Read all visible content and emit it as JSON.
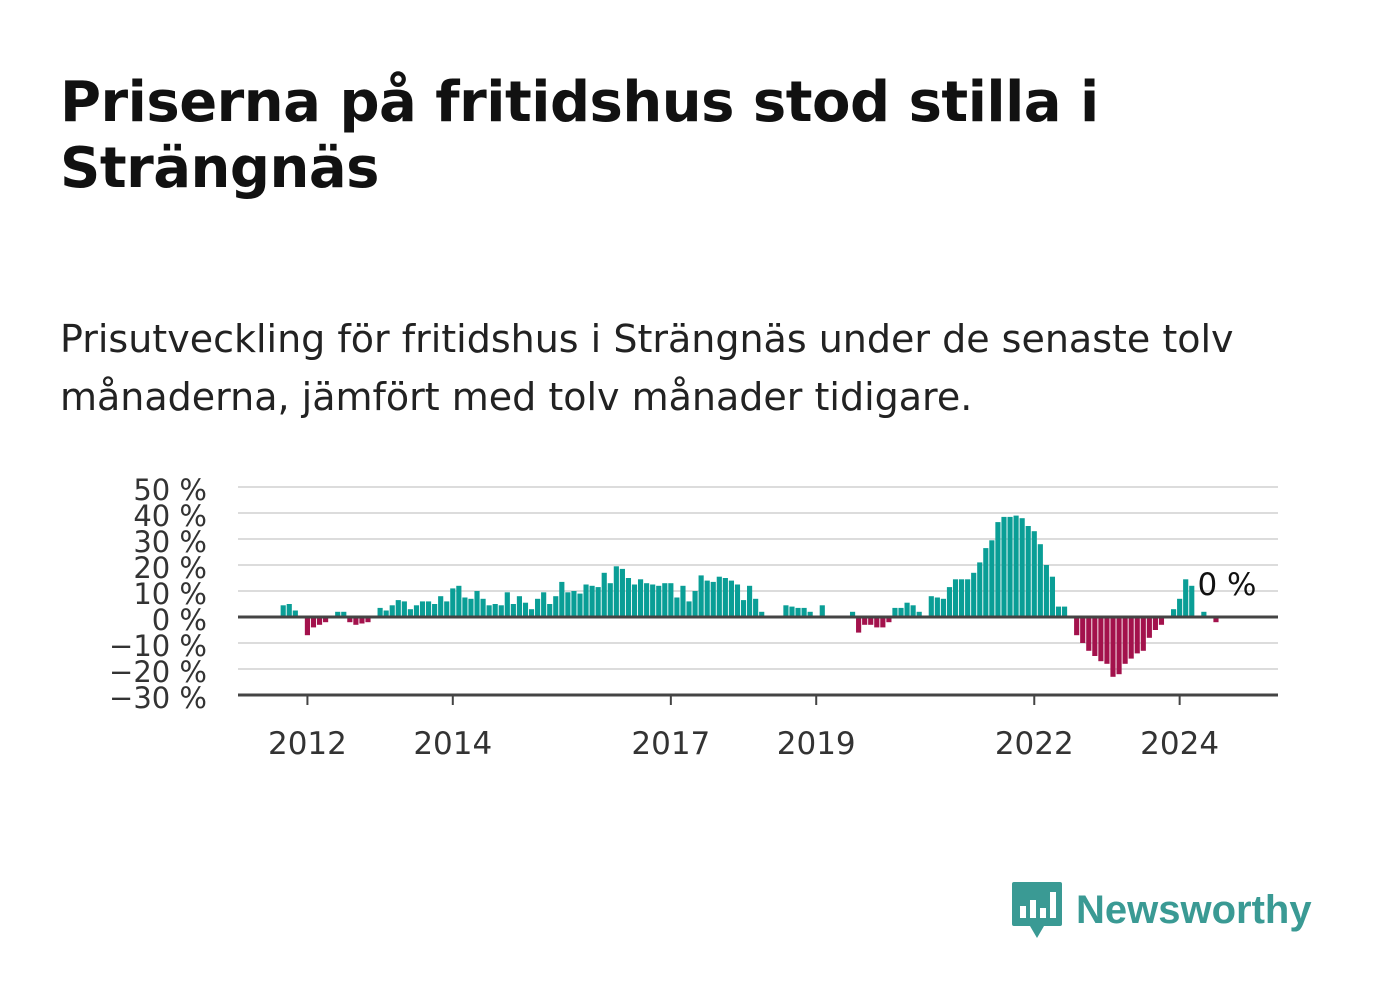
{
  "title": "Priserna på fritidshus stod stilla i Strängnäs",
  "subtitle": "Prisutveckling för fritidshus i Strängnäs under de senaste tolv månaderna, jämfört med tolv månader tidigare.",
  "logo": {
    "name": "Newsworthy",
    "icon": "bar-chart-speech-bubble-icon",
    "color": "#3a9a94"
  },
  "colors": {
    "positive": "#0a9e96",
    "negative": "#a3124c",
    "grid": "#dcdcdc",
    "axis": "#444444",
    "label": "#333333"
  },
  "chart_data": {
    "type": "bar",
    "title": "",
    "xlabel": "",
    "ylabel": "",
    "ylim": [
      -30,
      50
    ],
    "y_ticks": [
      50,
      40,
      30,
      20,
      10,
      0,
      -10,
      -20,
      -30
    ],
    "y_tick_labels": [
      "50 %",
      "40 %",
      "30 %",
      "20 %",
      "10 %",
      "0 %",
      "−10 %",
      "−20 %",
      "−30 %"
    ],
    "x_ticks": [
      "2012",
      "2014",
      "2017",
      "2019",
      "2022",
      "2024"
    ],
    "x_start": "2011-09",
    "grid": true,
    "last_value_label": "0 %",
    "series": [
      {
        "values": [
          4.5,
          5,
          2.5,
          0,
          -7,
          -4,
          -3,
          -2,
          0,
          2,
          2,
          -2,
          -3,
          -2.5,
          -2,
          0,
          3.5,
          2.5,
          4.5,
          6.5,
          6,
          3,
          4.5,
          6,
          6,
          5,
          8,
          6,
          11,
          12,
          7.5,
          7,
          10,
          7,
          4.5,
          5,
          4.5,
          9.5,
          5,
          8,
          5.5,
          3,
          7,
          9.5,
          5,
          8,
          13.5,
          9.5,
          10,
          9,
          12.5,
          12,
          11.5,
          17,
          13,
          19.5,
          18.5,
          15,
          12.5,
          14.5,
          13,
          12.5,
          12,
          13,
          13,
          7.5,
          12,
          6,
          10,
          16,
          14,
          13.5,
          15.5,
          15,
          14,
          12.5,
          6.5,
          12,
          7,
          2,
          0,
          0,
          0,
          4.5,
          4,
          3.5,
          3.5,
          2,
          0,
          4.5,
          0,
          0,
          0,
          0,
          2,
          -6,
          -3,
          -3,
          -4,
          -4,
          -2,
          3.5,
          3.5,
          5.5,
          4.5,
          2,
          0,
          8,
          7.5,
          7,
          11.5,
          14.5,
          14.5,
          14.5,
          17,
          21,
          26.5,
          29.5,
          36.5,
          38.5,
          38.5,
          39,
          38,
          35,
          33,
          28,
          20,
          15.5,
          4,
          4,
          0,
          -7,
          -10,
          -13,
          -15,
          -17,
          -18,
          -23,
          -22,
          -18,
          -16,
          -14,
          -13,
          -8,
          -5,
          -3,
          0,
          3,
          7,
          14.5,
          12,
          0,
          2,
          0,
          -2,
          0,
          0,
          0
        ]
      }
    ]
  }
}
